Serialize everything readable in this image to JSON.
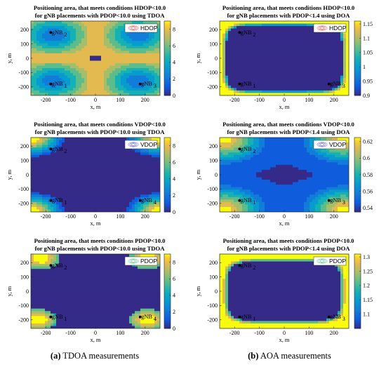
{
  "captions": {
    "left_letter": "(a)",
    "left_text": " TDOA measurements",
    "right_letter": "(b)",
    "right_text": " AOA measurements"
  },
  "chart_data": [
    {
      "type": "heatmap",
      "title_line1": "Positioning area, that meets conditions HDOP<10.0",
      "title_line2": "for gNB placements with PDOP<10.0 using TDOA",
      "xlabel": "x, m",
      "ylabel": "y, m",
      "xlim": [
        -260,
        260
      ],
      "ylim": [
        -260,
        260
      ],
      "xticks": [
        -200,
        -100,
        0,
        100,
        200
      ],
      "yticks": [
        -200,
        -100,
        0,
        100,
        200
      ],
      "colorbar": {
        "min": 0,
        "max": 9,
        "ticks": [
          0,
          2,
          4,
          6,
          8
        ]
      },
      "legend": "HDOP",
      "legend_color": "#e04040",
      "stations": [
        {
          "label": "gNB",
          "sub": "2",
          "x": -180,
          "y": 180
        },
        {
          "label": "gNB",
          "sub": "1",
          "x": -180,
          "y": -180
        },
        {
          "label": "gNB",
          "sub": "3",
          "x": 180,
          "y": -180
        }
      ],
      "field": "tdoa_h"
    },
    {
      "type": "heatmap",
      "title_line1": "Positioning area, that meets conditions HDOP<10.0",
      "title_line2": "for gNB placements with PDOP<1.4 using DOA",
      "xlabel": "x, m",
      "ylabel": "y, m",
      "xlim": [
        -260,
        260
      ],
      "ylim": [
        -260,
        260
      ],
      "xticks": [
        -200,
        -100,
        0,
        100,
        200
      ],
      "yticks": [
        -200,
        -100,
        0,
        100,
        200
      ],
      "colorbar": {
        "min": 0.9,
        "max": 1.16,
        "ticks": [
          0.9,
          0.95,
          1,
          1.05,
          1.1,
          1.15
        ]
      },
      "legend": "HDOP",
      "legend_color": "#e04040",
      "stations": [
        {
          "label": "gNB",
          "sub": "2",
          "x": -180,
          "y": 180
        },
        {
          "label": "gNB",
          "sub": "1",
          "x": -180,
          "y": -180
        },
        {
          "label": "gNB",
          "sub": "3",
          "x": 180,
          "y": -180
        }
      ],
      "field": "aoa_h"
    },
    {
      "type": "heatmap",
      "title_line1": "Positioning area, that meets conditions VDOP<10.0",
      "title_line2": "for gNB placements with PDOP<10.0 using TDOA",
      "xlabel": "x, m",
      "ylabel": "y, m",
      "xlim": [
        -260,
        260
      ],
      "ylim": [
        -260,
        260
      ],
      "xticks": [
        -200,
        -100,
        0,
        100,
        200
      ],
      "yticks": [
        -200,
        -100,
        0,
        100,
        200
      ],
      "colorbar": {
        "min": 0,
        "max": 9,
        "ticks": [
          0,
          2,
          4,
          6,
          8
        ]
      },
      "legend": "VDOP",
      "legend_color": "#5050d0",
      "stations": [
        {
          "label": "gNB",
          "sub": "2",
          "x": -180,
          "y": 180
        },
        {
          "label": "gNB",
          "sub": "1",
          "x": -180,
          "y": -180
        },
        {
          "label": "gNB",
          "sub": "4",
          "x": 180,
          "y": -180
        }
      ],
      "field": "tdoa_v"
    },
    {
      "type": "heatmap",
      "title_line1": "Positioning area, that meets conditions VDOP<10.0",
      "title_line2": "for gNB placements with PDOP<1.4 using DOA",
      "xlabel": "x, m",
      "ylabel": "y, m",
      "xlim": [
        -260,
        260
      ],
      "ylim": [
        -260,
        260
      ],
      "xticks": [
        -200,
        -100,
        0,
        100,
        200
      ],
      "yticks": [
        -200,
        -100,
        0,
        100,
        200
      ],
      "colorbar": {
        "min": 0.535,
        "max": 0.625,
        "ticks": [
          0.54,
          0.56,
          0.58,
          0.6,
          0.62
        ]
      },
      "legend": "VDOP",
      "legend_color": "#5050d0",
      "stations": [
        {
          "label": "gNB",
          "sub": "2",
          "x": -180,
          "y": 180
        },
        {
          "label": "gNB",
          "sub": "1",
          "x": -180,
          "y": -180
        },
        {
          "label": "gNB",
          "sub": "3",
          "x": 180,
          "y": -180
        }
      ],
      "field": "aoa_v"
    },
    {
      "type": "heatmap",
      "title_line1": "Positioning area, that meets conditions PDOP<10.0",
      "title_line2": "for gNB placements with PDOP<10.0 using TDOA",
      "xlabel": "x, m",
      "ylabel": "y, m",
      "xlim": [
        -260,
        260
      ],
      "ylim": [
        -260,
        260
      ],
      "xticks": [
        -200,
        -100,
        0,
        100,
        200
      ],
      "yticks": [
        -200,
        -100,
        0,
        100,
        200
      ],
      "colorbar": {
        "min": 0,
        "max": 9,
        "ticks": [
          0,
          2,
          4,
          6,
          8
        ]
      },
      "legend": "PDOP",
      "legend_color": "#40c080",
      "stations": [
        {
          "label": "gNB",
          "sub": "2",
          "x": -180,
          "y": 180
        },
        {
          "label": "gNB",
          "sub": "1",
          "x": -180,
          "y": -180
        },
        {
          "label": "gNB",
          "sub": "4",
          "x": 180,
          "y": -180
        }
      ],
      "field": "tdoa_p"
    },
    {
      "type": "heatmap",
      "title_line1": "Positioning area, that meets conditions PDOP<10.0",
      "title_line2": "for gNB placements with PDOP<1.4 using DOA",
      "xlabel": "x, m",
      "ylabel": "y, m",
      "xlim": [
        -260,
        260
      ],
      "ylim": [
        -260,
        260
      ],
      "xticks": [
        -200,
        -100,
        0,
        100,
        200
      ],
      "yticks": [
        -200,
        -100,
        0,
        100,
        200
      ],
      "colorbar": {
        "min": 1.05,
        "max": 1.31,
        "ticks": [
          1.1,
          1.15,
          1.2,
          1.25,
          1.3
        ]
      },
      "legend": "PDOP",
      "legend_color": "#40c080",
      "stations": [
        {
          "label": "gNB",
          "sub": "2",
          "x": -180,
          "y": 180
        },
        {
          "label": "gNB",
          "sub": "1",
          "x": -180,
          "y": -180
        },
        {
          "label": "gNB",
          "sub": "3",
          "x": 180,
          "y": -180
        }
      ],
      "field": "aoa_p"
    }
  ]
}
